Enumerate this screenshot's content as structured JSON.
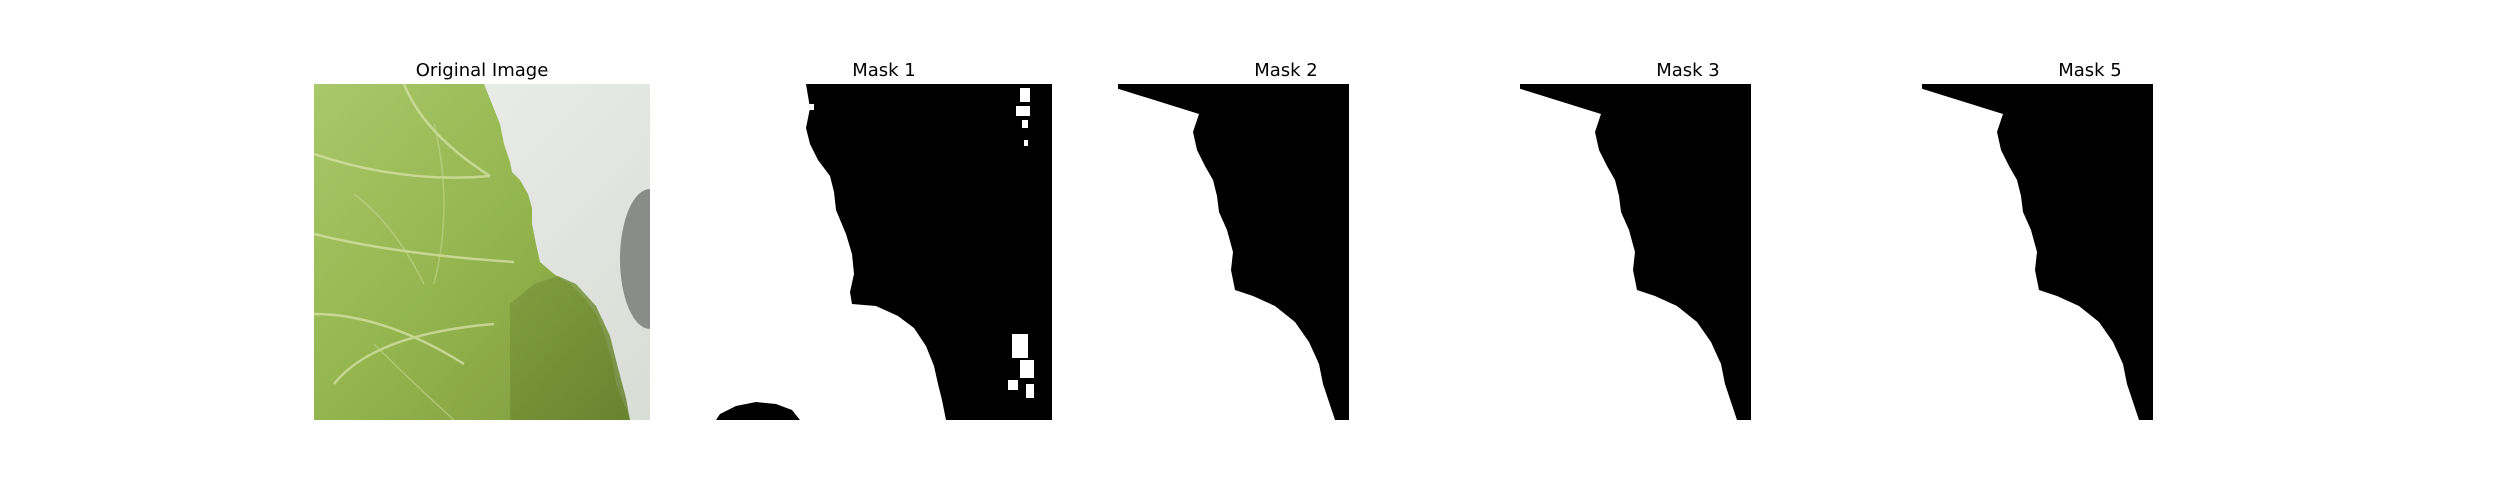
{
  "panels": [
    {
      "title": "Original Image"
    },
    {
      "title": "Mask 1"
    },
    {
      "title": "Mask 2"
    },
    {
      "title": "Mask 3"
    },
    {
      "title": "Mask 5"
    }
  ],
  "colors": {
    "background": "#ffffff",
    "mask_foreground": "#ffffff",
    "mask_background": "#000000",
    "leaf_green": "#9dbb56",
    "paper_white": "#e6e9e4"
  }
}
